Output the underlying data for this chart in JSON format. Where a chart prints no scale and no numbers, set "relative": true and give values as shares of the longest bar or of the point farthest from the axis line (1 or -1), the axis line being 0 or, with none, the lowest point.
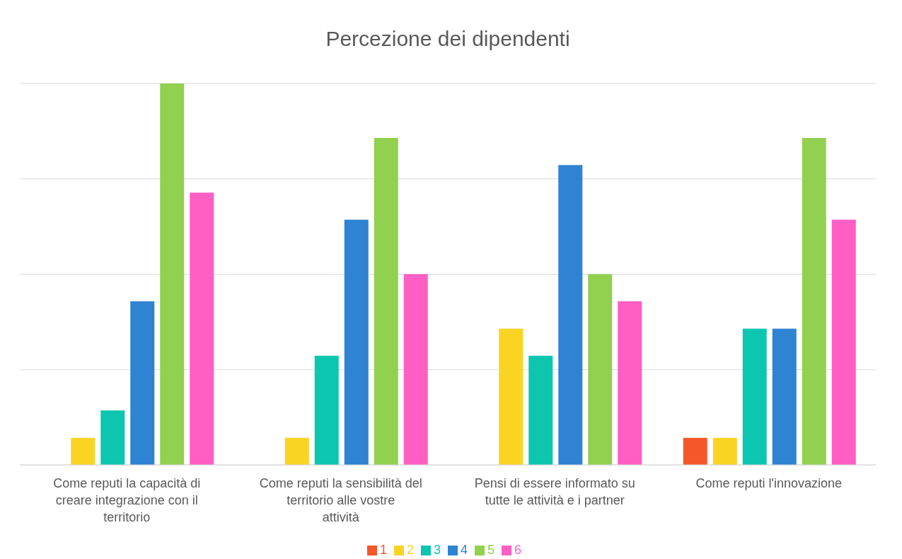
{
  "chart_data": {
    "type": "bar",
    "title": "Percezione dei dipendenti",
    "relative": true,
    "grid": "y",
    "legend": "bottom",
    "categories": [
      "Come reputi la capacità di creare integrazione con il territorio",
      "Come reputi la sensibilità del territorio alle vostre attività",
      "Pensi di essere informato su tutte le attività e i partner",
      "Come reputi l'innovazione"
    ],
    "series": [
      {
        "name": "1",
        "color": "#f4572a",
        "values": [
          0,
          0,
          0,
          0.071
        ]
      },
      {
        "name": "2",
        "color": "#f9d423",
        "values": [
          0.071,
          0.071,
          0.357,
          0.071
        ]
      },
      {
        "name": "3",
        "color": "#0cc6b0",
        "values": [
          0.143,
          0.286,
          0.286,
          0.357
        ]
      },
      {
        "name": "4",
        "color": "#2e83d3",
        "values": [
          0.429,
          0.643,
          0.786,
          0.357
        ]
      },
      {
        "name": "5",
        "color": "#92d050",
        "values": [
          1,
          0.857,
          0.5,
          0.857
        ]
      },
      {
        "name": "6",
        "color": "#ff5ec4",
        "values": [
          0.714,
          0.5,
          0.429,
          0.643
        ]
      }
    ]
  }
}
